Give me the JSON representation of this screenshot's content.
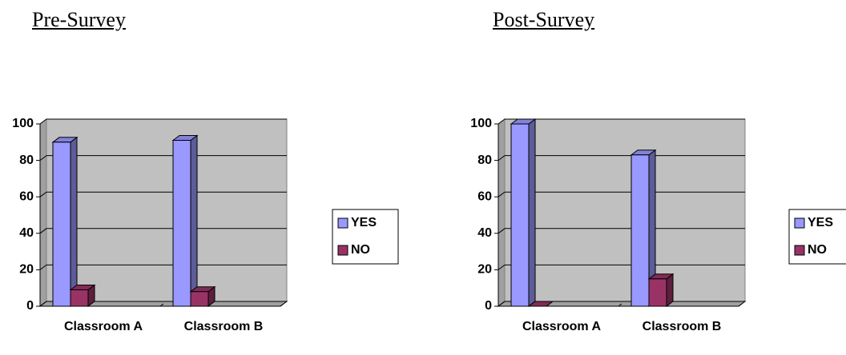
{
  "chart_data": [
    {
      "type": "bar",
      "title": "Pre-Survey",
      "categories": [
        "Classroom A",
        "Classroom B"
      ],
      "series": [
        {
          "name": "YES",
          "color": "#9999ff",
          "values": [
            90,
            91
          ]
        },
        {
          "name": "NO",
          "color": "#993366",
          "values": [
            9,
            8
          ]
        }
      ],
      "ylim": [
        0,
        100
      ],
      "yticks": [
        0,
        20,
        40,
        60,
        80,
        100
      ],
      "grid": true,
      "legend": "right"
    },
    {
      "type": "bar",
      "title": "Post-Survey",
      "categories": [
        "Classroom A",
        "Classroom B"
      ],
      "series": [
        {
          "name": "YES",
          "color": "#9999ff",
          "values": [
            100,
            83
          ]
        },
        {
          "name": "NO",
          "color": "#993366",
          "values": [
            0,
            15
          ]
        }
      ],
      "ylim": [
        0,
        100
      ],
      "yticks": [
        0,
        20,
        40,
        60,
        80,
        100
      ],
      "grid": true,
      "legend": "right"
    }
  ]
}
